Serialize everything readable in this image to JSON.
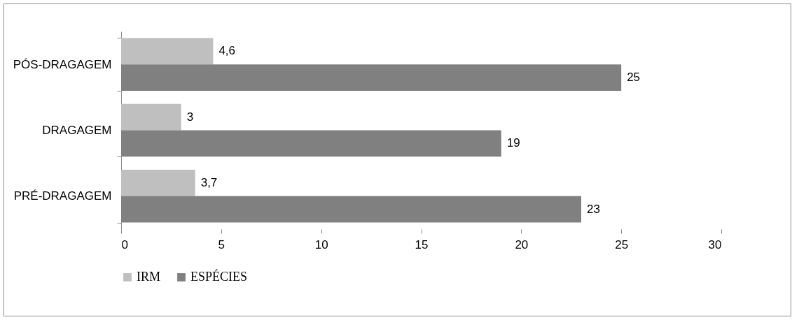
{
  "chart_data": {
    "type": "bar",
    "orientation": "horizontal",
    "categories": [
      "PÓS-DRAGAGEM",
      "DRAGAGEM",
      "PRÉ-DRAGAGEM"
    ],
    "series": [
      {
        "name": "IRM",
        "color": "#bfbfbf",
        "values": [
          4.6,
          3,
          3.7
        ],
        "value_labels": [
          "4,6",
          "3",
          "3,7"
        ]
      },
      {
        "name": "ESPÉCIES",
        "color": "#808080",
        "values": [
          25,
          19,
          23
        ],
        "value_labels": [
          "25",
          "19",
          "23"
        ]
      }
    ],
    "xlim": [
      0,
      30
    ],
    "xticks": [
      0,
      5,
      10,
      15,
      20,
      25,
      30
    ],
    "grid": false,
    "legend": "bottom"
  }
}
